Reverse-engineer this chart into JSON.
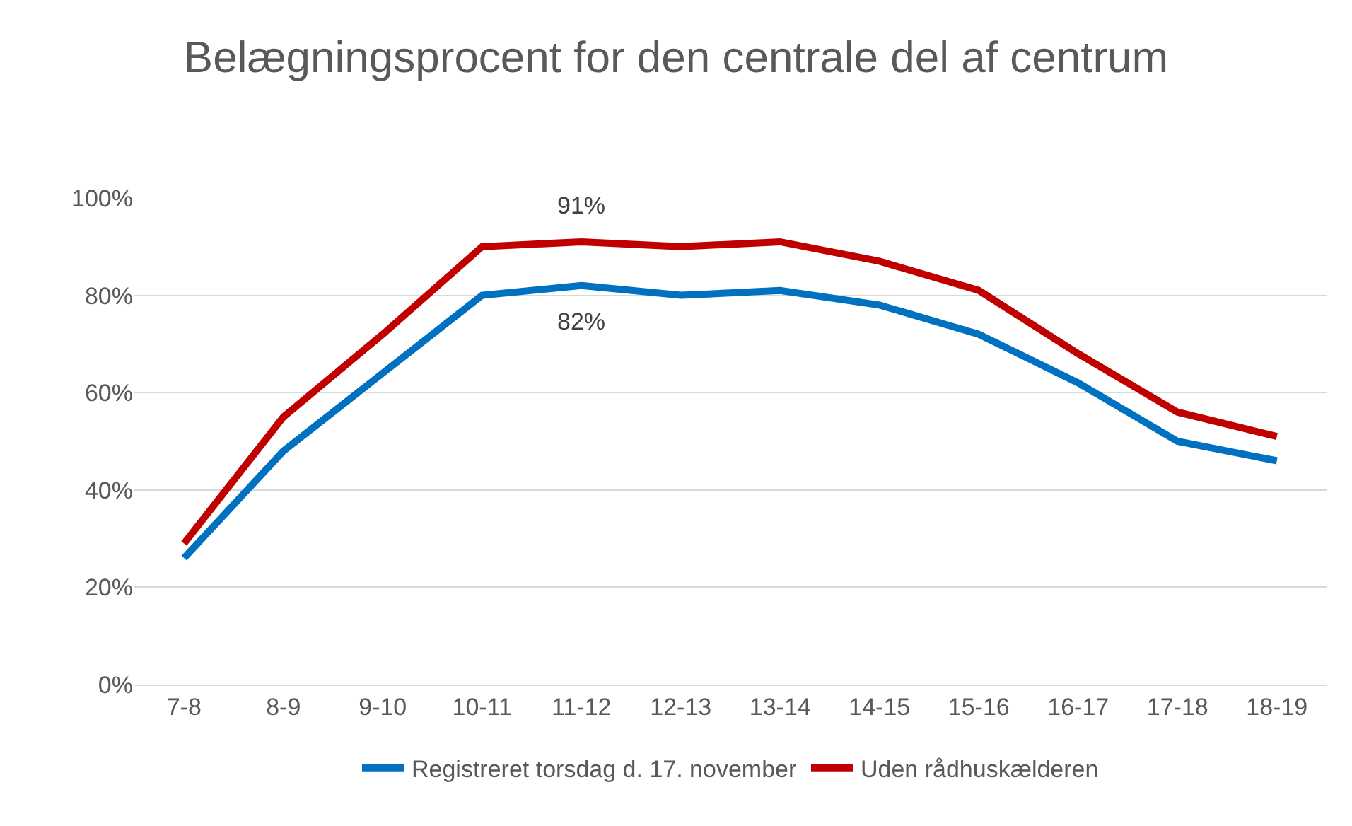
{
  "chart_data": {
    "type": "line",
    "title": "Belægningsprocent for den centrale del af centrum",
    "categories": [
      "7-8",
      "8-9",
      "9-10",
      "10-11",
      "11-12",
      "12-13",
      "13-14",
      "14-15",
      "15-16",
      "16-17",
      "17-18",
      "18-19"
    ],
    "series": [
      {
        "name": "Registreret torsdag d. 17. november",
        "color": "#0070c0",
        "values": [
          26,
          48,
          64,
          80,
          82,
          80,
          81,
          78,
          72,
          62,
          50,
          46
        ],
        "value_labels": [
          null,
          null,
          null,
          null,
          "82%",
          null,
          null,
          null,
          null,
          null,
          null,
          null
        ]
      },
      {
        "name": "Uden rådhuskælderen",
        "color": "#c00000",
        "values": [
          29,
          55,
          72,
          90,
          91,
          90,
          91,
          87,
          81,
          68,
          56,
          51
        ],
        "value_labels": [
          null,
          null,
          null,
          null,
          "91%",
          null,
          null,
          null,
          null,
          null,
          null,
          null
        ]
      }
    ],
    "ylim": [
      0,
      100
    ],
    "yticks": [
      {
        "value": 0,
        "label": "0%"
      },
      {
        "value": 20,
        "label": "20%"
      },
      {
        "value": 40,
        "label": "40%"
      },
      {
        "value": 60,
        "label": "60%"
      },
      {
        "value": 80,
        "label": "80%"
      },
      {
        "value": 100,
        "label": "100%"
      }
    ],
    "grid": "y",
    "legend": "bottom",
    "marker": "none",
    "line_style": "solid"
  }
}
